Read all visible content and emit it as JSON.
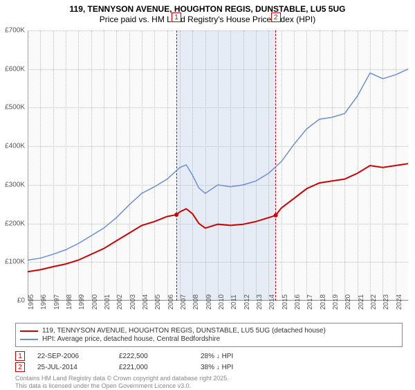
{
  "title": {
    "line1": "119, TENNYSON AVENUE, HOUGHTON REGIS, DUNSTABLE, LU5 5UG",
    "line2": "Price paid vs. HM Land Registry's House Price Index (HPI)"
  },
  "chart": {
    "type": "line",
    "background_color": "#fafafa",
    "grid_color": "#c0c0c0",
    "axis_color": "#888888",
    "x": {
      "min": 1995,
      "max": 2025,
      "ticks": [
        1995,
        1996,
        1997,
        1998,
        1999,
        2000,
        2001,
        2002,
        2003,
        2004,
        2005,
        2006,
        2007,
        2008,
        2009,
        2010,
        2011,
        2012,
        2013,
        2014,
        2015,
        2016,
        2017,
        2018,
        2019,
        2020,
        2021,
        2022,
        2023,
        2024
      ]
    },
    "y": {
      "min": 0,
      "max": 700000,
      "ticks": [
        0,
        100000,
        200000,
        300000,
        400000,
        500000,
        600000,
        700000
      ],
      "labels": [
        "£0",
        "£100K",
        "£200K",
        "£300K",
        "£400K",
        "£500K",
        "£600K",
        "£700K"
      ]
    },
    "highlight_band": {
      "fill": "rgba(120,160,220,0.15)",
      "dash_color": "#cc0000",
      "x_from": 2006.73,
      "x_to": 2014.56,
      "markers": [
        {
          "num": "1",
          "x": 2006.73
        },
        {
          "num": "2",
          "x": 2014.56
        }
      ]
    },
    "series": [
      {
        "id": "price_paid",
        "label": "119, TENNYSON AVENUE, HOUGHTON REGIS, DUNSTABLE, LU5 5UG (detached house)",
        "color": "#cc0000",
        "width": 2,
        "points": [
          [
            1995,
            75000
          ],
          [
            1996,
            80000
          ],
          [
            1997,
            88000
          ],
          [
            1998,
            95000
          ],
          [
            1999,
            105000
          ],
          [
            2000,
            120000
          ],
          [
            2001,
            135000
          ],
          [
            2002,
            155000
          ],
          [
            2003,
            175000
          ],
          [
            2004,
            195000
          ],
          [
            2005,
            205000
          ],
          [
            2006,
            218000
          ],
          [
            2006.73,
            222500
          ],
          [
            2007,
            230000
          ],
          [
            2007.5,
            238000
          ],
          [
            2008,
            225000
          ],
          [
            2008.5,
            200000
          ],
          [
            2009,
            188000
          ],
          [
            2010,
            198000
          ],
          [
            2011,
            195000
          ],
          [
            2012,
            198000
          ],
          [
            2013,
            205000
          ],
          [
            2014,
            215000
          ],
          [
            2014.56,
            221000
          ],
          [
            2015,
            240000
          ],
          [
            2016,
            265000
          ],
          [
            2017,
            290000
          ],
          [
            2018,
            305000
          ],
          [
            2019,
            310000
          ],
          [
            2020,
            315000
          ],
          [
            2021,
            330000
          ],
          [
            2022,
            350000
          ],
          [
            2023,
            345000
          ],
          [
            2024,
            350000
          ],
          [
            2025,
            355000
          ]
        ],
        "sale_markers": [
          {
            "x": 2006.73,
            "y": 222500
          },
          {
            "x": 2014.56,
            "y": 221000
          }
        ]
      },
      {
        "id": "hpi",
        "label": "HPI: Average price, detached house, Central Bedfordshire",
        "color": "#6b8fd4",
        "width": 1.5,
        "points": [
          [
            1995,
            105000
          ],
          [
            1996,
            110000
          ],
          [
            1997,
            120000
          ],
          [
            1998,
            132000
          ],
          [
            1999,
            148000
          ],
          [
            2000,
            168000
          ],
          [
            2001,
            188000
          ],
          [
            2002,
            215000
          ],
          [
            2003,
            248000
          ],
          [
            2004,
            278000
          ],
          [
            2005,
            295000
          ],
          [
            2006,
            315000
          ],
          [
            2007,
            345000
          ],
          [
            2007.5,
            352000
          ],
          [
            2008,
            325000
          ],
          [
            2008.5,
            292000
          ],
          [
            2009,
            278000
          ],
          [
            2010,
            300000
          ],
          [
            2011,
            295000
          ],
          [
            2012,
            300000
          ],
          [
            2013,
            310000
          ],
          [
            2014,
            330000
          ],
          [
            2015,
            360000
          ],
          [
            2016,
            405000
          ],
          [
            2017,
            445000
          ],
          [
            2018,
            470000
          ],
          [
            2019,
            475000
          ],
          [
            2020,
            485000
          ],
          [
            2021,
            530000
          ],
          [
            2022,
            590000
          ],
          [
            2023,
            575000
          ],
          [
            2024,
            585000
          ],
          [
            2025,
            600000
          ]
        ]
      }
    ]
  },
  "legend": {
    "border_color": "#888888",
    "items": [
      {
        "series": "price_paid"
      },
      {
        "series": "hpi"
      }
    ]
  },
  "annotations": [
    {
      "num": "1",
      "date": "22-SEP-2006",
      "price": "£222,500",
      "delta": "28% ↓ HPI"
    },
    {
      "num": "2",
      "date": "25-JUL-2014",
      "price": "£221,000",
      "delta": "38% ↓ HPI"
    }
  ],
  "credit": {
    "l1": "Contains HM Land Registry data © Crown copyright and database right 2025.",
    "l2": "This data is licensed under the Open Government Licence v3.0."
  }
}
